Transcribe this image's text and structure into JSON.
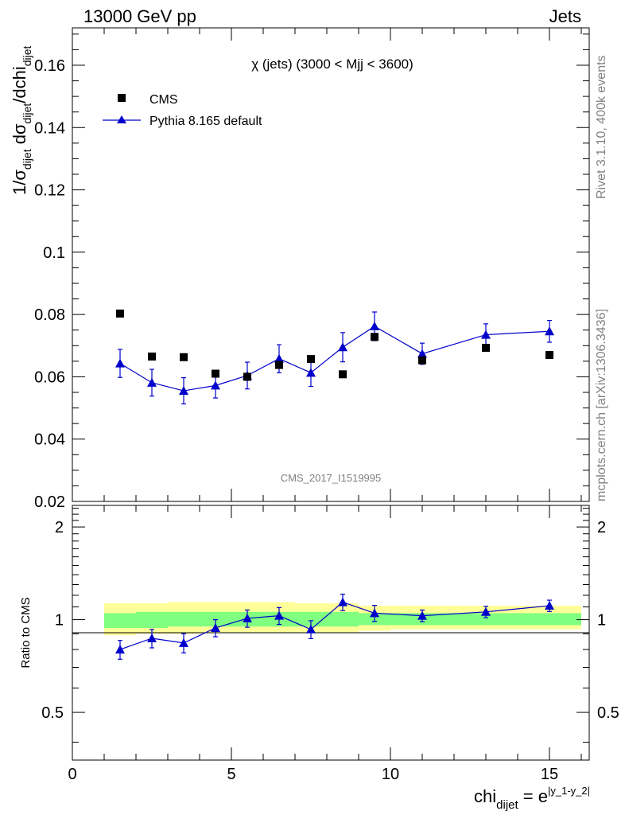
{
  "header": {
    "left": "13000 GeV pp",
    "right": "Jets"
  },
  "side_text": {
    "rivet": "Rivet 3.1.10,  400k events",
    "mcplots": "mcplots.cern.ch [arXiv:1306.3436]"
  },
  "watermark": "CMS_2017_I1519995",
  "colors": {
    "data": "#000000",
    "mc": "#0000cc",
    "band_inner": "#80ff80",
    "band_outer": "#ffff99"
  },
  "chart_data": [
    {
      "type": "scatter",
      "title": "χ (jets) (3000 < Mjj < 3600)",
      "ylabel": "1/σdijet dσdijet/dchidijet",
      "xlim": [
        0,
        16.25
      ],
      "ylim": [
        0.02,
        0.172
      ],
      "yticks": [
        "0.02",
        "0.04",
        "0.06",
        "0.08",
        "0.1",
        "0.12",
        "0.14",
        "0.16"
      ],
      "legend_position": "top-left",
      "series": [
        {
          "name": "CMS",
          "marker": "square",
          "x": [
            1.5,
            2.5,
            3.5,
            4.5,
            5.5,
            6.5,
            7.5,
            8.5,
            9.5,
            11,
            13,
            15
          ],
          "y": [
            0.0803,
            0.0665,
            0.0663,
            0.061,
            0.06,
            0.0638,
            0.0657,
            0.0608,
            0.0728,
            0.0653,
            0.0693,
            0.067
          ]
        },
        {
          "name": "Pythia 8.165 default",
          "marker": "triangle",
          "x": [
            1.5,
            2.5,
            3.5,
            4.5,
            5.5,
            6.5,
            7.5,
            8.5,
            9.5,
            11,
            13,
            15
          ],
          "y": [
            0.0643,
            0.0581,
            0.0555,
            0.0572,
            0.0604,
            0.0658,
            0.0613,
            0.0695,
            0.0762,
            0.0674,
            0.0735,
            0.0746
          ],
          "yerr": [
            0.0045,
            0.0043,
            0.0042,
            0.004,
            0.0043,
            0.0045,
            0.0044,
            0.0047,
            0.0046,
            0.0034,
            0.0035,
            0.0035
          ]
        }
      ]
    },
    {
      "type": "scatter",
      "ylabel": "Ratio to CMS",
      "xlabel": "chidijet = e|y_1-y_2|",
      "xlim": [
        0,
        16.25
      ],
      "ylim": [
        0.35,
        2.35
      ],
      "ylog": true,
      "yticks": [
        "0.5",
        "1",
        "2"
      ],
      "xticks": [
        "0",
        "5",
        "10",
        "15"
      ],
      "reference_line": 1,
      "band": {
        "edges": [
          1,
          2,
          3,
          4,
          5,
          6,
          7,
          8,
          9,
          10,
          12,
          14,
          16
        ],
        "inner_low": [
          0.94,
          0.94,
          0.95,
          0.95,
          0.95,
          0.95,
          0.95,
          0.95,
          0.96,
          0.96,
          0.96,
          0.96
        ],
        "inner_high": [
          1.05,
          1.06,
          1.06,
          1.06,
          1.06,
          1.06,
          1.06,
          1.06,
          1.05,
          1.05,
          1.05,
          1.05
        ],
        "outer_low": [
          0.89,
          0.9,
          0.9,
          0.91,
          0.91,
          0.91,
          0.91,
          0.91,
          0.92,
          0.93,
          0.93,
          0.93
        ],
        "outer_high": [
          1.13,
          1.13,
          1.14,
          1.14,
          1.14,
          1.14,
          1.13,
          1.13,
          1.11,
          1.11,
          1.11,
          1.11
        ]
      },
      "series": [
        {
          "name": "Pythia 8.165 default",
          "x": [
            1.5,
            2.5,
            3.5,
            4.5,
            5.5,
            6.5,
            7.5,
            8.5,
            9.5,
            11,
            13,
            15
          ],
          "y": [
            0.8,
            0.87,
            0.84,
            0.94,
            1.01,
            1.03,
            0.93,
            1.14,
            1.05,
            1.03,
            1.06,
            1.11
          ],
          "yerr": [
            0.056,
            0.06,
            0.06,
            0.06,
            0.065,
            0.065,
            0.062,
            0.07,
            0.063,
            0.045,
            0.045,
            0.047
          ]
        }
      ]
    }
  ]
}
